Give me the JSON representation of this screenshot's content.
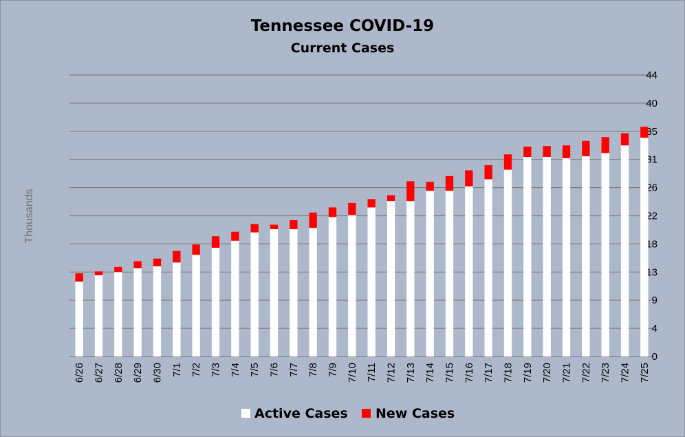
{
  "chart_data": {
    "type": "bar",
    "stacked": true,
    "title": "Tennessee COVID-19",
    "subtitle": "Current Cases",
    "ylabel": "Thousands",
    "xlabel": "",
    "ylim": [
      0,
      44
    ],
    "y_ticks": [
      "0",
      "4",
      "9",
      "13",
      "18",
      "22",
      "26",
      "31",
      "35",
      "40",
      "44"
    ],
    "grid": true,
    "legend_position": "bottom",
    "categories": [
      "6/26",
      "6/27",
      "6/28",
      "6/29",
      "6/30",
      "7/1",
      "7/2",
      "7/3",
      "7/4",
      "7/5",
      "7/6",
      "7/7",
      "7/8",
      "7/9",
      "7/10",
      "7/11",
      "7/12",
      "7/13",
      "7/14",
      "7/15",
      "7/16",
      "7/17",
      "7/18",
      "7/19",
      "7/20",
      "7/21",
      "7/22",
      "7/23",
      "7/24",
      "7/25"
    ],
    "series": [
      {
        "name": "Active Cases",
        "color": "#ffffff",
        "values": [
          11.7,
          12.7,
          13.2,
          13.8,
          14.1,
          14.7,
          15.9,
          17.0,
          18.1,
          19.4,
          19.9,
          19.9,
          20.1,
          21.8,
          22.1,
          23.3,
          24.3,
          24.3,
          25.9,
          25.9,
          26.6,
          27.7,
          29.2,
          31.2,
          31.2,
          31.0,
          31.3,
          31.8,
          33.0,
          34.2
        ]
      },
      {
        "name": "New Cases",
        "color": "#ff0000",
        "values": [
          1.3,
          0.6,
          0.8,
          1.1,
          1.2,
          1.8,
          1.6,
          1.8,
          1.4,
          1.3,
          0.7,
          1.4,
          2.4,
          1.5,
          1.9,
          1.3,
          0.9,
          3.1,
          1.4,
          2.3,
          2.5,
          2.2,
          2.4,
          1.6,
          1.7,
          2.0,
          2.4,
          2.5,
          1.9,
          1.7
        ]
      }
    ]
  }
}
